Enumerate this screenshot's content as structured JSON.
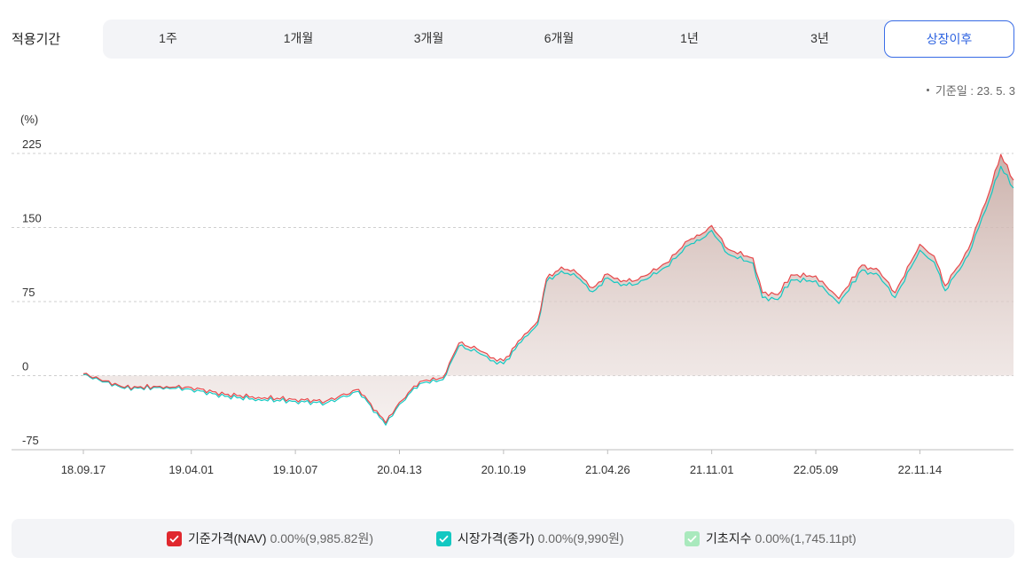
{
  "period": {
    "label": "적용기간",
    "tabs": [
      {
        "label": "1주",
        "active": false
      },
      {
        "label": "1개월",
        "active": false
      },
      {
        "label": "3개월",
        "active": false
      },
      {
        "label": "6개월",
        "active": false
      },
      {
        "label": "1년",
        "active": false
      },
      {
        "label": "3년",
        "active": false
      },
      {
        "label": "상장이후",
        "active": true
      }
    ]
  },
  "base_date": "기준일 : 23. 5. 3",
  "chart_data": {
    "type": "line",
    "ylabel": "(%)",
    "ylim": [
      -75,
      225
    ],
    "yticks": [
      225,
      150,
      75,
      0,
      -75
    ],
    "xticks": [
      "18.09.17",
      "19.04.01",
      "19.10.07",
      "20.04.13",
      "20.10.19",
      "21.04.26",
      "21.11.01",
      "22.05.09",
      "22.11.14"
    ],
    "grid": true,
    "series": [
      {
        "name": "기준가격(NAV)",
        "color": "#e8474a",
        "points": [
          [
            "18.09.17",
            2
          ],
          [
            "18.12.01",
            -12
          ],
          [
            "19.02.15",
            -11
          ],
          [
            "19.04.01",
            -12
          ],
          [
            "19.06.01",
            -19
          ],
          [
            "19.08.01",
            -22
          ],
          [
            "19.10.07",
            -24
          ],
          [
            "19.12.01",
            -26
          ],
          [
            "20.01.30",
            -14
          ],
          [
            "20.03.19",
            -48
          ],
          [
            "20.04.13",
            -27
          ],
          [
            "20.05.20",
            -6
          ],
          [
            "20.07.01",
            -2
          ],
          [
            "20.07.30",
            33
          ],
          [
            "20.09.01",
            27
          ],
          [
            "20.10.01",
            18
          ],
          [
            "20.10.19",
            15
          ],
          [
            "20.11.20",
            37
          ],
          [
            "20.12.20",
            55
          ],
          [
            "21.01.05",
            98
          ],
          [
            "21.02.01",
            110
          ],
          [
            "21.03.01",
            104
          ],
          [
            "21.03.30",
            89
          ],
          [
            "21.04.26",
            103
          ],
          [
            "21.05.20",
            95
          ],
          [
            "21.06.20",
            97
          ],
          [
            "21.08.10",
            114
          ],
          [
            "21.09.20",
            137
          ],
          [
            "21.10.10",
            142
          ],
          [
            "21.11.01",
            152
          ],
          [
            "21.12.01",
            128
          ],
          [
            "22.01.15",
            119
          ],
          [
            "22.02.01",
            84
          ],
          [
            "22.03.01",
            82
          ],
          [
            "22.03.25",
            102
          ],
          [
            "22.05.09",
            101
          ],
          [
            "22.06.20",
            78
          ],
          [
            "22.08.01",
            112
          ],
          [
            "22.09.01",
            106
          ],
          [
            "22.09.30",
            84
          ],
          [
            "22.11.14",
            133
          ],
          [
            "22.12.10",
            121
          ],
          [
            "22.12.30",
            91
          ],
          [
            "23.01.20",
            109
          ],
          [
            "23.02.10",
            128
          ],
          [
            "23.03.01",
            157
          ],
          [
            "23.03.20",
            186
          ],
          [
            "23.04.10",
            224
          ],
          [
            "23.05.03",
            198
          ]
        ]
      },
      {
        "name": "시장가격(종가)",
        "color": "#13c8c2",
        "points": [
          [
            "18.09.17",
            1
          ],
          [
            "18.12.01",
            -13
          ],
          [
            "19.02.15",
            -12
          ],
          [
            "19.04.01",
            -14
          ],
          [
            "19.06.01",
            -21
          ],
          [
            "19.08.01",
            -24
          ],
          [
            "19.10.07",
            -26
          ],
          [
            "19.12.01",
            -28
          ],
          [
            "20.01.30",
            -16
          ],
          [
            "20.03.19",
            -50
          ],
          [
            "20.04.13",
            -29
          ],
          [
            "20.05.20",
            -8
          ],
          [
            "20.07.01",
            -4
          ],
          [
            "20.07.30",
            30
          ],
          [
            "20.09.01",
            24
          ],
          [
            "20.10.01",
            15
          ],
          [
            "20.10.19",
            12
          ],
          [
            "20.11.20",
            34
          ],
          [
            "20.12.20",
            52
          ],
          [
            "21.01.05",
            95
          ],
          [
            "21.02.01",
            106
          ],
          [
            "21.03.01",
            100
          ],
          [
            "21.03.30",
            85
          ],
          [
            "21.04.26",
            99
          ],
          [
            "21.05.20",
            91
          ],
          [
            "21.06.20",
            93
          ],
          [
            "21.08.10",
            110
          ],
          [
            "21.09.20",
            132
          ],
          [
            "21.10.10",
            137
          ],
          [
            "21.11.01",
            147
          ],
          [
            "21.12.01",
            123
          ],
          [
            "22.01.15",
            114
          ],
          [
            "22.02.01",
            79
          ],
          [
            "22.03.01",
            77
          ],
          [
            "22.03.25",
            97
          ],
          [
            "22.05.09",
            96
          ],
          [
            "22.06.20",
            73
          ],
          [
            "22.08.01",
            107
          ],
          [
            "22.09.01",
            101
          ],
          [
            "22.09.30",
            79
          ],
          [
            "22.11.14",
            127
          ],
          [
            "22.12.10",
            115
          ],
          [
            "22.12.30",
            86
          ],
          [
            "23.01.20",
            104
          ],
          [
            "23.02.10",
            122
          ],
          [
            "23.03.01",
            150
          ],
          [
            "23.03.20",
            178
          ],
          [
            "23.04.10",
            212
          ],
          [
            "23.05.03",
            190
          ]
        ]
      }
    ]
  },
  "legend": [
    {
      "name": "기준가격(NAV)",
      "value": "0.00%(9,985.82원)",
      "color": "#e0282e"
    },
    {
      "name": "시장가격(종가)",
      "value": "0.00%(9,990원)",
      "color": "#13c8c2"
    },
    {
      "name": "기초지수",
      "value": "0.00%(1,745.11pt)",
      "color": "#a9e9bd"
    }
  ]
}
